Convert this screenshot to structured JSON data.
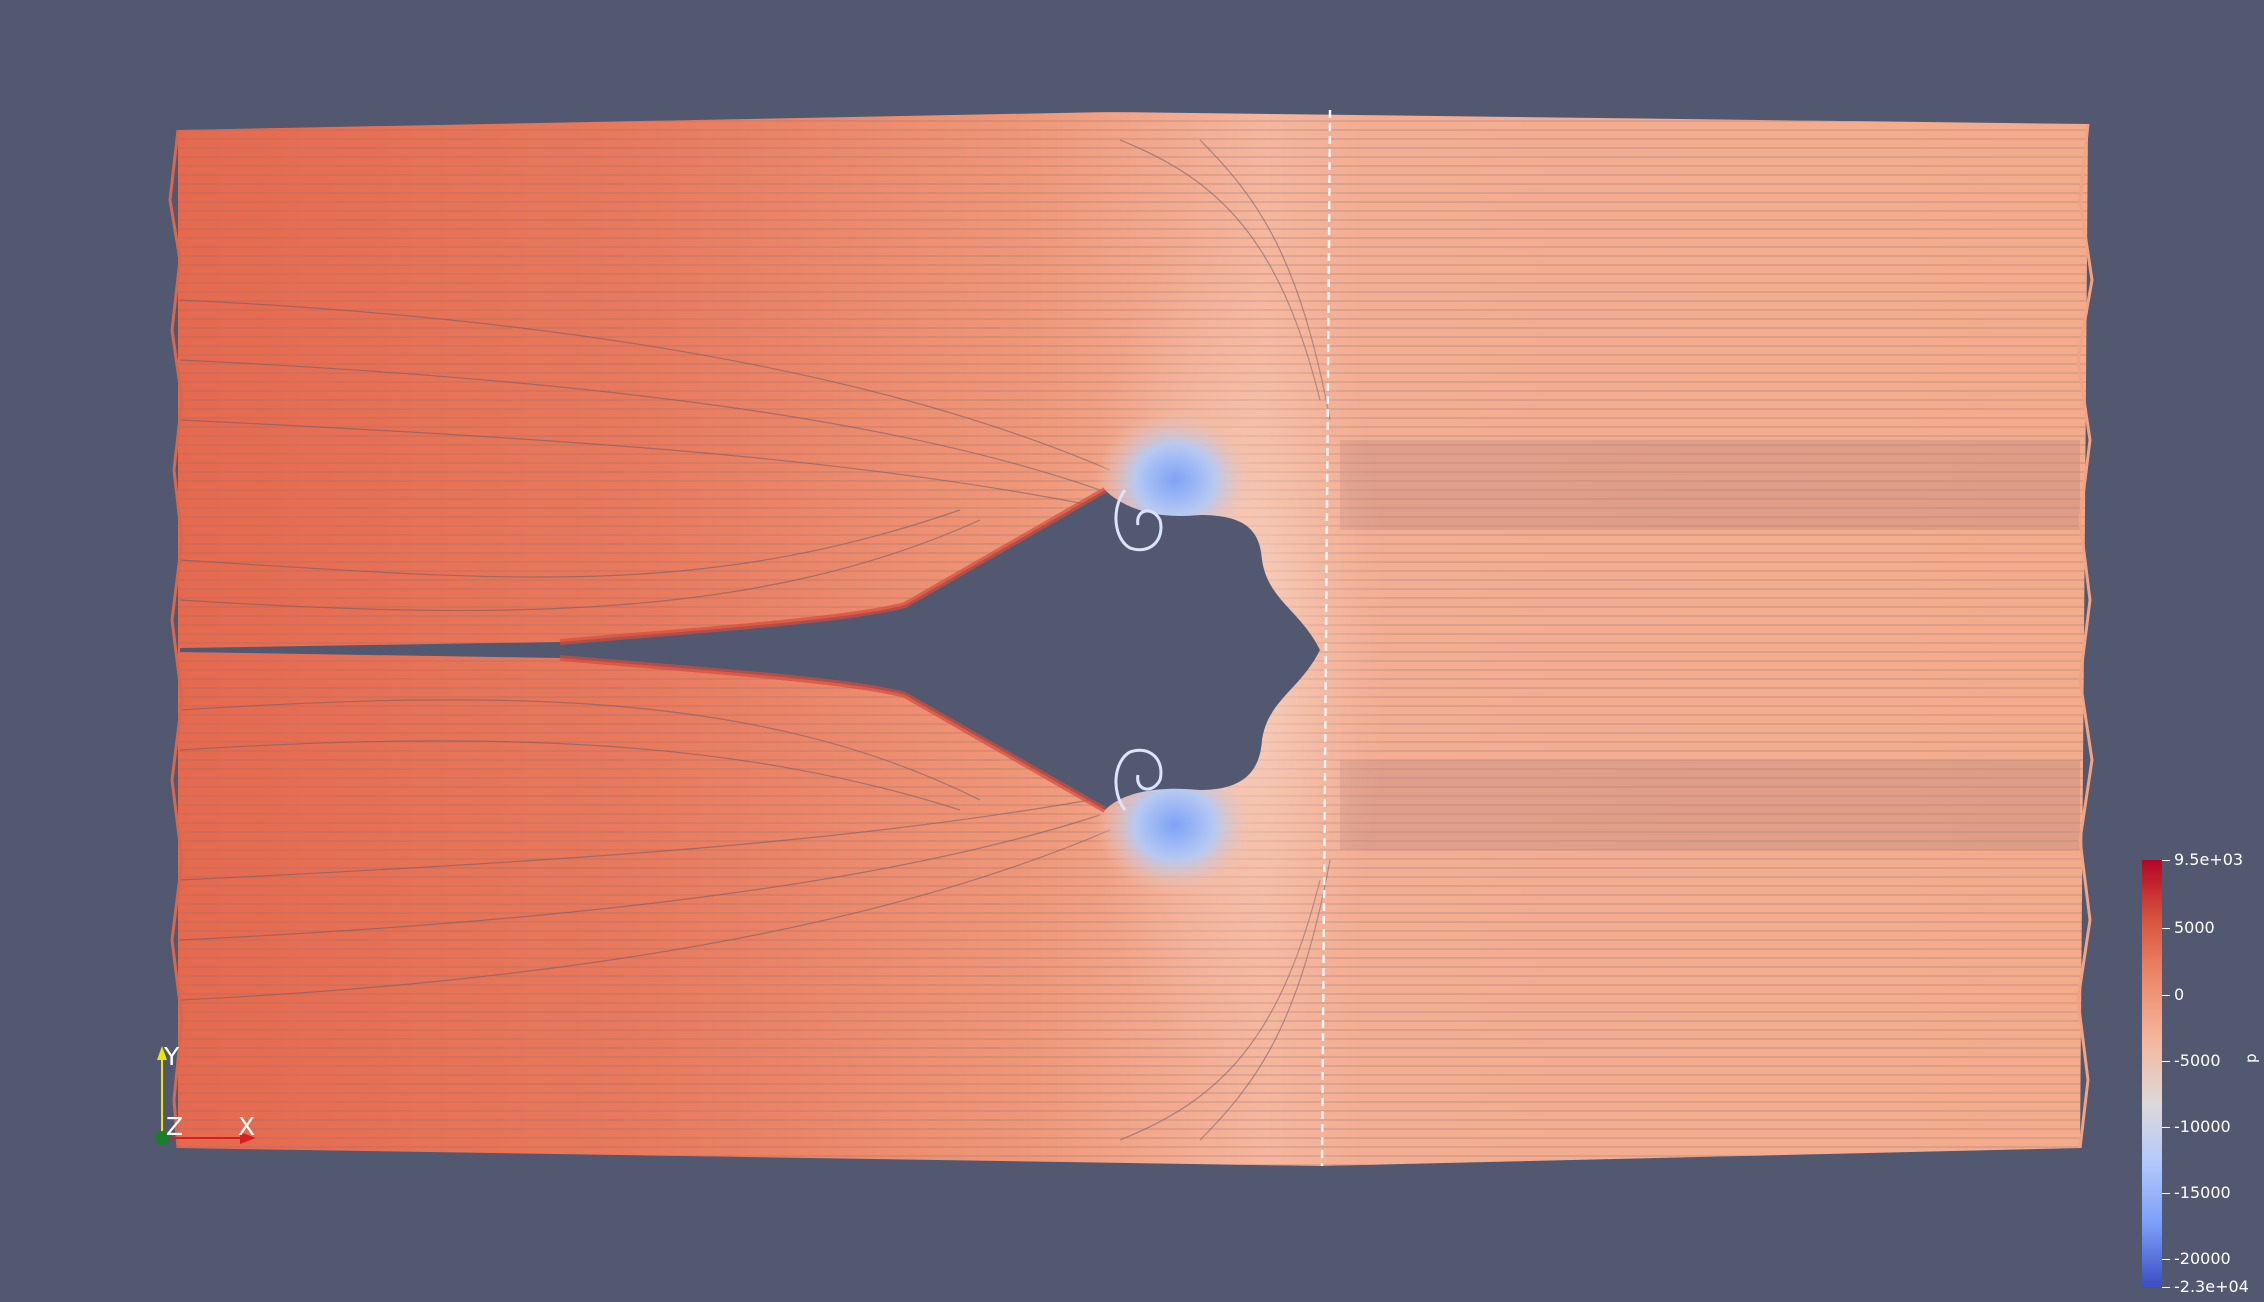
{
  "colorbar": {
    "title": "p",
    "max_label": "9.5e+03",
    "min_label": "-2.3e+04",
    "range": [
      -23000,
      9500
    ],
    "ticks": [
      {
        "value": 5000,
        "label": "5000"
      },
      {
        "value": 0,
        "label": "0"
      },
      {
        "value": -5000,
        "label": "-5000"
      },
      {
        "value": -10000,
        "label": "-10000"
      },
      {
        "value": -15000,
        "label": "-15000"
      },
      {
        "value": -20000,
        "label": "-20000"
      }
    ],
    "colors": {
      "high": "#b40426",
      "mid_high": "#e7745b",
      "neutral": "#dddcdc",
      "mid_low": "#7b9ff9",
      "low": "#3b4cc0"
    }
  },
  "axes_triad": {
    "x_label": "X",
    "y_label": "Y",
    "z_label": "Z",
    "x_color": "#d42020",
    "y_color": "#e6e60a",
    "z_color": "#1a7f2a"
  },
  "viewport": {
    "background": "#525870",
    "field_colors": {
      "left_region": "#e87b5e",
      "right_region": "#f4ab8c",
      "low_pressure": "#a9c1ff"
    }
  }
}
